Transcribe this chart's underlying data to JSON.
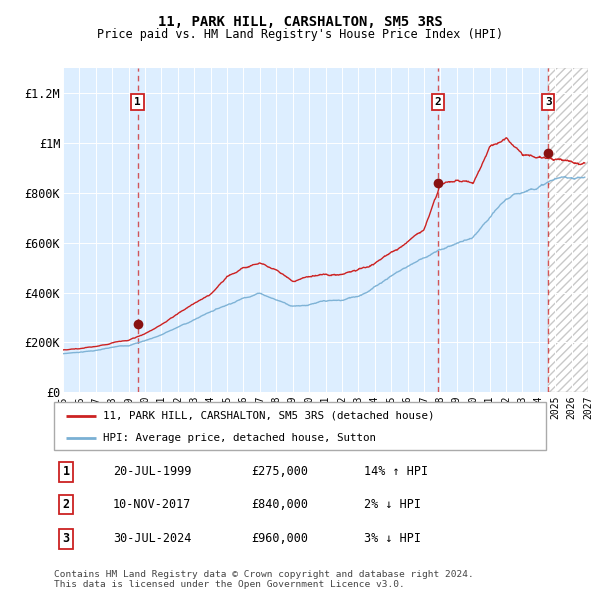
{
  "title": "11, PARK HILL, CARSHALTON, SM5 3RS",
  "subtitle": "Price paid vs. HM Land Registry's House Price Index (HPI)",
  "legend_line1": "11, PARK HILL, CARSHALTON, SM5 3RS (detached house)",
  "legend_line2": "HPI: Average price, detached house, Sutton",
  "sale1_date": "20-JUL-1999",
  "sale1_price": 275000,
  "sale1_hpi": "14% ↑ HPI",
  "sale2_date": "10-NOV-2017",
  "sale2_price": 840000,
  "sale2_hpi": "2% ↓ HPI",
  "sale3_date": "30-JUL-2024",
  "sale3_price": 960000,
  "sale3_hpi": "3% ↓ HPI",
  "footer": "Contains HM Land Registry data © Crown copyright and database right 2024.\nThis data is licensed under the Open Government Licence v3.0.",
  "hpi_color": "#7ab0d4",
  "price_color": "#cc2222",
  "bg_color": "#ddeeff",
  "xmin": 1995.0,
  "xmax": 2027.0,
  "ymin": 0,
  "ymax": 1300000,
  "sale1_x": 1999.55,
  "sale2_x": 2017.86,
  "sale3_x": 2024.58
}
